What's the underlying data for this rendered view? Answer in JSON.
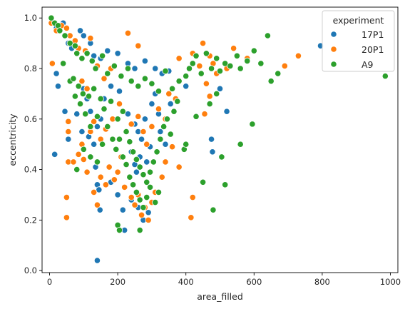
{
  "chart_data": {
    "type": "scatter",
    "title": "",
    "xlabel": "area_filled",
    "ylabel": "eccentricity",
    "xlim": [
      -22,
      1022
    ],
    "ylim": [
      -0.008,
      1.043
    ],
    "xticks": [
      0,
      200,
      400,
      600,
      800,
      1000
    ],
    "yticks": [
      0.0,
      0.2,
      0.4,
      0.6,
      0.8,
      1.0
    ],
    "xtick_labels": [
      "0",
      "200",
      "400",
      "600",
      "800",
      "1000"
    ],
    "ytick_labels": [
      "0.0",
      "0.2",
      "0.4",
      "0.6",
      "0.8",
      "1.0"
    ],
    "grid": false,
    "legend": {
      "title": "experiment",
      "placement": "top-right",
      "entries": [
        "17P1",
        "20P1",
        "A9"
      ]
    },
    "series": [
      {
        "name": "17P1",
        "color": "#1f77b4",
        "points": [
          [
            20,
            0.96
          ],
          [
            40,
            0.98
          ],
          [
            55,
            0.9
          ],
          [
            65,
            0.88
          ],
          [
            90,
            0.95
          ],
          [
            100,
            0.93
          ],
          [
            120,
            0.9
          ],
          [
            130,
            0.85
          ],
          [
            150,
            0.84
          ],
          [
            170,
            0.87
          ],
          [
            200,
            0.86
          ],
          [
            230,
            0.82
          ],
          [
            250,
            0.8
          ],
          [
            280,
            0.83
          ],
          [
            310,
            0.8
          ],
          [
            330,
            0.78
          ],
          [
            350,
            0.79
          ],
          [
            400,
            0.73
          ],
          [
            500,
            0.72
          ],
          [
            520,
            0.63
          ],
          [
            795,
            0.89
          ],
          [
            20,
            0.78
          ],
          [
            25,
            0.73
          ],
          [
            15,
            0.46
          ],
          [
            45,
            0.63
          ],
          [
            55,
            0.52
          ],
          [
            80,
            0.62
          ],
          [
            95,
            0.55
          ],
          [
            115,
            0.53
          ],
          [
            130,
            0.5
          ],
          [
            135,
            0.41
          ],
          [
            140,
            0.34
          ],
          [
            145,
            0.32
          ],
          [
            148,
            0.24
          ],
          [
            140,
            0.04
          ],
          [
            180,
            0.35
          ],
          [
            200,
            0.3
          ],
          [
            215,
            0.24
          ],
          [
            220,
            0.16
          ],
          [
            240,
            0.28
          ],
          [
            260,
            0.25
          ],
          [
            275,
            0.2
          ],
          [
            290,
            0.23
          ],
          [
            300,
            0.27
          ],
          [
            230,
            0.62
          ],
          [
            250,
            0.58
          ],
          [
            260,
            0.55
          ],
          [
            270,
            0.52
          ],
          [
            280,
            0.6
          ],
          [
            300,
            0.66
          ],
          [
            310,
            0.7
          ],
          [
            240,
            0.47
          ],
          [
            250,
            0.42
          ],
          [
            255,
            0.39
          ],
          [
            265,
            0.45
          ],
          [
            285,
            0.43
          ],
          [
            295,
            0.49
          ],
          [
            320,
            0.62
          ],
          [
            325,
            0.55
          ],
          [
            340,
            0.5
          ],
          [
            355,
            0.66
          ],
          [
            475,
            0.52
          ],
          [
            478,
            0.47
          ],
          [
            205,
            0.71
          ],
          [
            180,
            0.73
          ],
          [
            160,
            0.68
          ],
          [
            150,
            0.6
          ],
          [
            140,
            0.57
          ],
          [
            120,
            0.63
          ],
          [
            110,
            0.68
          ],
          [
            100,
            0.72
          ]
        ]
      },
      {
        "name": "20P1",
        "color": "#ff7f0e",
        "points": [
          [
            5,
            0.98
          ],
          [
            8,
            0.82
          ],
          [
            20,
            0.95
          ],
          [
            35,
            0.97
          ],
          [
            50,
            0.96
          ],
          [
            60,
            0.93
          ],
          [
            75,
            0.91
          ],
          [
            85,
            0.88
          ],
          [
            105,
            0.87
          ],
          [
            120,
            0.92
          ],
          [
            140,
            0.81
          ],
          [
            160,
            0.76
          ],
          [
            180,
            0.8
          ],
          [
            230,
            0.94
          ],
          [
            260,
            0.89
          ],
          [
            380,
            0.84
          ],
          [
            420,
            0.86
          ],
          [
            440,
            0.81
          ],
          [
            450,
            0.9
          ],
          [
            470,
            0.85
          ],
          [
            480,
            0.82
          ],
          [
            490,
            0.78
          ],
          [
            520,
            0.8
          ],
          [
            540,
            0.88
          ],
          [
            580,
            0.84
          ],
          [
            690,
            0.81
          ],
          [
            730,
            0.85
          ],
          [
            55,
            0.59
          ],
          [
            55,
            0.55
          ],
          [
            55,
            0.43
          ],
          [
            50,
            0.29
          ],
          [
            50,
            0.21
          ],
          [
            70,
            0.43
          ],
          [
            85,
            0.46
          ],
          [
            95,
            0.5
          ],
          [
            100,
            0.44
          ],
          [
            110,
            0.39
          ],
          [
            130,
            0.31
          ],
          [
            140,
            0.26
          ],
          [
            150,
            0.37
          ],
          [
            165,
            0.34
          ],
          [
            175,
            0.41
          ],
          [
            190,
            0.36
          ],
          [
            200,
            0.39
          ],
          [
            210,
            0.45
          ],
          [
            220,
            0.33
          ],
          [
            240,
            0.29
          ],
          [
            250,
            0.26
          ],
          [
            260,
            0.3
          ],
          [
            270,
            0.22
          ],
          [
            280,
            0.25
          ],
          [
            290,
            0.2
          ],
          [
            300,
            0.27
          ],
          [
            310,
            0.31
          ],
          [
            330,
            0.37
          ],
          [
            340,
            0.43
          ],
          [
            360,
            0.49
          ],
          [
            380,
            0.41
          ],
          [
            420,
            0.29
          ],
          [
            415,
            0.21
          ],
          [
            455,
            0.62
          ],
          [
            470,
            0.69
          ],
          [
            460,
            0.74
          ],
          [
            240,
            0.58
          ],
          [
            260,
            0.61
          ],
          [
            275,
            0.55
          ],
          [
            285,
            0.5
          ],
          [
            300,
            0.57
          ],
          [
            320,
            0.64
          ],
          [
            340,
            0.6
          ],
          [
            370,
            0.68
          ],
          [
            350,
            0.7
          ],
          [
            205,
            0.66
          ],
          [
            185,
            0.6
          ],
          [
            165,
            0.56
          ],
          [
            150,
            0.52
          ],
          [
            130,
            0.59
          ],
          [
            120,
            0.55
          ],
          [
            110,
            0.72
          ],
          [
            95,
            0.75
          ]
        ]
      },
      {
        "name": "A9",
        "color": "#2ca02c",
        "points": [
          [
            5,
            1.0
          ],
          [
            15,
            0.98
          ],
          [
            25,
            0.97
          ],
          [
            30,
            0.95
          ],
          [
            45,
            0.93
          ],
          [
            60,
            0.9
          ],
          [
            75,
            0.89
          ],
          [
            80,
            0.86
          ],
          [
            95,
            0.84
          ],
          [
            110,
            0.86
          ],
          [
            125,
            0.83
          ],
          [
            135,
            0.8
          ],
          [
            155,
            0.85
          ],
          [
            170,
            0.78
          ],
          [
            190,
            0.81
          ],
          [
            210,
            0.77
          ],
          [
            230,
            0.8
          ],
          [
            240,
            0.75
          ],
          [
            260,
            0.73
          ],
          [
            280,
            0.76
          ],
          [
            300,
            0.74
          ],
          [
            320,
            0.71
          ],
          [
            340,
            0.79
          ],
          [
            360,
            0.72
          ],
          [
            380,
            0.75
          ],
          [
            400,
            0.77
          ],
          [
            410,
            0.8
          ],
          [
            420,
            0.82
          ],
          [
            430,
            0.85
          ],
          [
            445,
            0.78
          ],
          [
            460,
            0.86
          ],
          [
            475,
            0.8
          ],
          [
            490,
            0.84
          ],
          [
            500,
            0.79
          ],
          [
            515,
            0.82
          ],
          [
            530,
            0.81
          ],
          [
            550,
            0.85
          ],
          [
            560,
            0.8
          ],
          [
            580,
            0.83
          ],
          [
            600,
            0.87
          ],
          [
            620,
            0.82
          ],
          [
            640,
            0.93
          ],
          [
            650,
            0.75
          ],
          [
            670,
            0.78
          ],
          [
            985,
            0.77
          ],
          [
            40,
            0.82
          ],
          [
            60,
            0.75
          ],
          [
            75,
            0.69
          ],
          [
            90,
            0.66
          ],
          [
            105,
            0.62
          ],
          [
            120,
            0.57
          ],
          [
            140,
            0.61
          ],
          [
            160,
            0.64
          ],
          [
            180,
            0.67
          ],
          [
            200,
            0.6
          ],
          [
            215,
            0.63
          ],
          [
            225,
            0.55
          ],
          [
            235,
            0.51
          ],
          [
            245,
            0.47
          ],
          [
            255,
            0.44
          ],
          [
            265,
            0.41
          ],
          [
            275,
            0.38
          ],
          [
            285,
            0.35
          ],
          [
            295,
            0.39
          ],
          [
            305,
            0.43
          ],
          [
            315,
            0.47
          ],
          [
            325,
            0.52
          ],
          [
            335,
            0.57
          ],
          [
            345,
            0.6
          ],
          [
            355,
            0.54
          ],
          [
            365,
            0.63
          ],
          [
            375,
            0.67
          ],
          [
            195,
            0.48
          ],
          [
            205,
            0.52
          ],
          [
            215,
            0.45
          ],
          [
            225,
            0.42
          ],
          [
            235,
            0.37
          ],
          [
            245,
            0.34
          ],
          [
            255,
            0.31
          ],
          [
            265,
            0.28
          ],
          [
            275,
            0.25
          ],
          [
            285,
            0.29
          ],
          [
            295,
            0.33
          ],
          [
            310,
            0.27
          ],
          [
            320,
            0.31
          ],
          [
            200,
            0.18
          ],
          [
            205,
            0.16
          ],
          [
            265,
            0.16
          ],
          [
            450,
            0.35
          ],
          [
            480,
            0.24
          ],
          [
            515,
            0.34
          ],
          [
            505,
            0.45
          ],
          [
            560,
            0.5
          ],
          [
            595,
            0.58
          ],
          [
            470,
            0.66
          ],
          [
            490,
            0.7
          ],
          [
            430,
            0.61
          ],
          [
            395,
            0.48
          ],
          [
            400,
            0.5
          ],
          [
            80,
            0.4
          ],
          [
            100,
            0.48
          ],
          [
            120,
            0.45
          ],
          [
            140,
            0.43
          ],
          [
            155,
            0.5
          ],
          [
            170,
            0.57
          ],
          [
            185,
            0.52
          ],
          [
            150,
            0.68
          ],
          [
            130,
            0.72
          ],
          [
            115,
            0.69
          ],
          [
            98,
            0.7
          ],
          [
            85,
            0.73
          ],
          [
            70,
            0.76
          ]
        ]
      }
    ]
  }
}
